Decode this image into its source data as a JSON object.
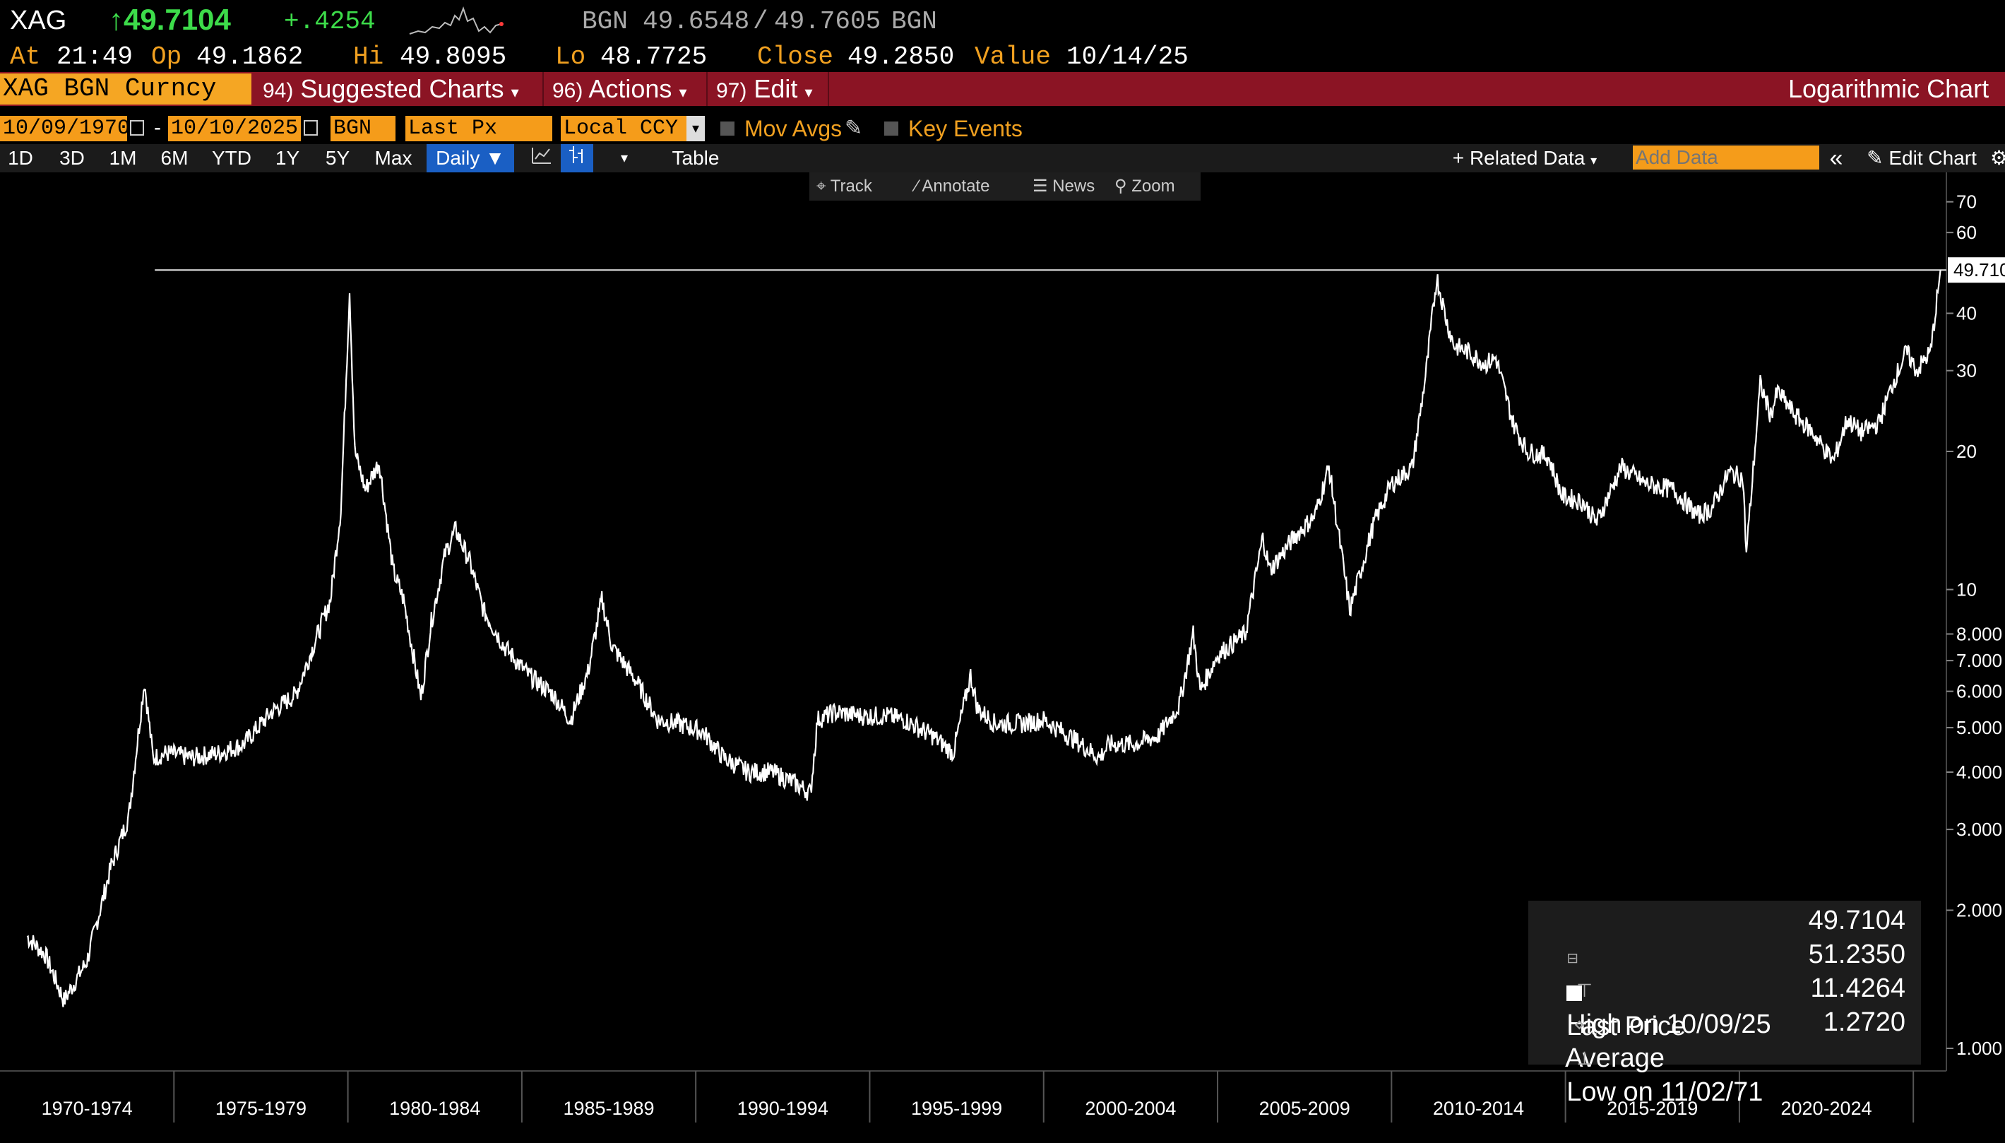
{
  "header": {
    "ticker": "XAG",
    "price": "↑49.7104",
    "change": "+.4254",
    "bid_label": "BGN",
    "bid": "49.6548",
    "slash": "/",
    "ask": "49.7605",
    "ask_unit": "BGN",
    "at_label": "At",
    "at_time": "21:49",
    "op_label": "Op",
    "op_value": "49.1862",
    "hi_label": "Hi",
    "hi_value": "49.8095",
    "lo_label": "Lo",
    "lo_value": "48.7725",
    "close_label": "Close",
    "close_value": "49.2850",
    "value_label": "Value",
    "value_date": "10/14/25"
  },
  "menu": {
    "security": "XAG BGN Curncy",
    "suggested_num": "94)",
    "suggested": "Suggested Charts",
    "actions_num": "96)",
    "actions": "Actions",
    "edit_num": "97)",
    "edit": "Edit",
    "chart_type": "Logarithmic Chart"
  },
  "options": {
    "start_date": "10/09/1970",
    "dash": "-",
    "end_date": "10/10/2025",
    "source": "BGN",
    "field": "Last Px",
    "currency": "Local CCY",
    "mov_avgs": "Mov Avgs",
    "key_events": "Key Events"
  },
  "ranges": {
    "buttons": [
      "1D",
      "3D",
      "1M",
      "6M",
      "YTD",
      "1Y",
      "5Y",
      "Max"
    ],
    "frequency": "Daily",
    "table": "Table",
    "related": "Related Data",
    "add_data_placeholder": "Add Data",
    "edit_chart": "Edit Chart"
  },
  "tools": {
    "track": "Track",
    "annotate": "Annotate",
    "news": "News",
    "zoom": "Zoom"
  },
  "legend": {
    "last_label": "Last Price",
    "last_value": "49.7104",
    "high_label": "High on 10/09/25",
    "high_value": "51.2350",
    "avg_label": "Average",
    "avg_value": "11.4264",
    "low_label": "Low on 11/02/71",
    "low_value": "1.2720"
  },
  "colors": {
    "price_green": "#3ddc4a",
    "accent_orange": "#f5a623",
    "menu_red": "#8b1424",
    "label_orange": "#f0a020",
    "series": "#ffffff"
  },
  "chart_data": {
    "type": "line",
    "scale": "log",
    "ylim": [
      1.0,
      75
    ],
    "y_ticks": [
      "70",
      "60",
      "40",
      "30",
      "20",
      "10",
      "8.000",
      "7.000",
      "6.000",
      "5.000",
      "4.000",
      "3.000",
      "2.000",
      "1.000"
    ],
    "y_tick_values": [
      70,
      60,
      40,
      30,
      20,
      10,
      8,
      7,
      6,
      5,
      4,
      3,
      2,
      1
    ],
    "x_categories": [
      "1970-1974",
      "1975-1979",
      "1980-1984",
      "1985-1989",
      "1990-1994",
      "1995-1999",
      "2000-2004",
      "2005-2009",
      "2010-2014",
      "2015-2019",
      "2020-2024"
    ],
    "last_price_tag": "49.710",
    "reference_line_value": 49.71,
    "series": [
      {
        "x": [
          1970.78,
          1971.3,
          1971.84,
          1972.5,
          1973.2,
          1973.7,
          1974.15,
          1974.4,
          1974.8,
          1975.5,
          1976.3,
          1977.0,
          1977.8,
          1978.5,
          1979.0,
          1979.5,
          1979.8,
          1980.05,
          1980.2,
          1980.5,
          1980.9,
          1981.3,
          1981.6,
          1982.1,
          1982.4,
          1982.8,
          1983.1,
          1983.5,
          1983.9,
          1984.5,
          1985.2,
          1985.9,
          1986.4,
          1986.9,
          1987.3,
          1987.6,
          1988.3,
          1988.9,
          1989.5,
          1990.2,
          1990.8,
          1991.5,
          1992.2,
          1992.8,
          1993.3,
          1993.5,
          1994.0,
          1994.8,
          1995.5,
          1996.0,
          1996.8,
          1997.4,
          1997.9,
          1998.1,
          1998.6,
          1999.4,
          2000.0,
          2000.9,
          2001.6,
          2001.9,
          2002.6,
          2003.3,
          2003.9,
          2004.3,
          2004.5,
          2005.0,
          2005.8,
          2006.3,
          2006.5,
          2007.2,
          2007.8,
          2008.2,
          2008.8,
          2009.5,
          2010.0,
          2010.6,
          2011.0,
          2011.3,
          2011.6,
          2011.8,
          2012.2,
          2012.7,
          2013.0,
          2013.5,
          2013.9,
          2014.5,
          2014.9,
          2015.5,
          2015.9,
          2016.6,
          2017.3,
          2018.1,
          2018.8,
          2019.2,
          2019.7,
          2020.1,
          2020.2,
          2020.6,
          2020.9,
          2021.1,
          2021.6,
          2022.1,
          2022.7,
          2023.1,
          2023.5,
          2024.0,
          2024.4,
          2024.8,
          2025.1,
          2025.5,
          2025.78
        ],
        "values": [
          1.75,
          1.6,
          1.27,
          1.55,
          2.5,
          3.2,
          6.3,
          4.3,
          4.4,
          4.3,
          4.4,
          4.6,
          5.4,
          5.9,
          7.5,
          9.5,
          15.0,
          45.0,
          20.0,
          16.5,
          19.0,
          11.0,
          9.5,
          5.8,
          8.5,
          12.0,
          13.5,
          11.5,
          9.0,
          7.5,
          6.5,
          5.9,
          5.2,
          6.6,
          9.5,
          7.5,
          6.3,
          5.2,
          5.1,
          4.9,
          4.3,
          4.0,
          4.0,
          3.8,
          3.6,
          5.2,
          5.4,
          5.3,
          5.3,
          5.2,
          4.8,
          4.4,
          6.5,
          5.5,
          5.1,
          5.1,
          5.2,
          4.7,
          4.3,
          4.6,
          4.6,
          4.8,
          5.6,
          8.0,
          6.0,
          7.2,
          8.0,
          13.0,
          11.0,
          13.0,
          14.5,
          18.5,
          9.0,
          14.0,
          17.0,
          18.5,
          30.0,
          48.0,
          38.0,
          34.0,
          33.0,
          31.0,
          32.0,
          23.0,
          20.0,
          19.5,
          16.0,
          15.5,
          14.0,
          18.5,
          17.0,
          16.5,
          14.5,
          15.0,
          18.0,
          17.5,
          12.0,
          28.0,
          24.0,
          27.0,
          24.0,
          22.0,
          19.0,
          23.5,
          22.0,
          23.0,
          28.0,
          33.0,
          30.0,
          33.0,
          49.71
        ]
      }
    ]
  }
}
